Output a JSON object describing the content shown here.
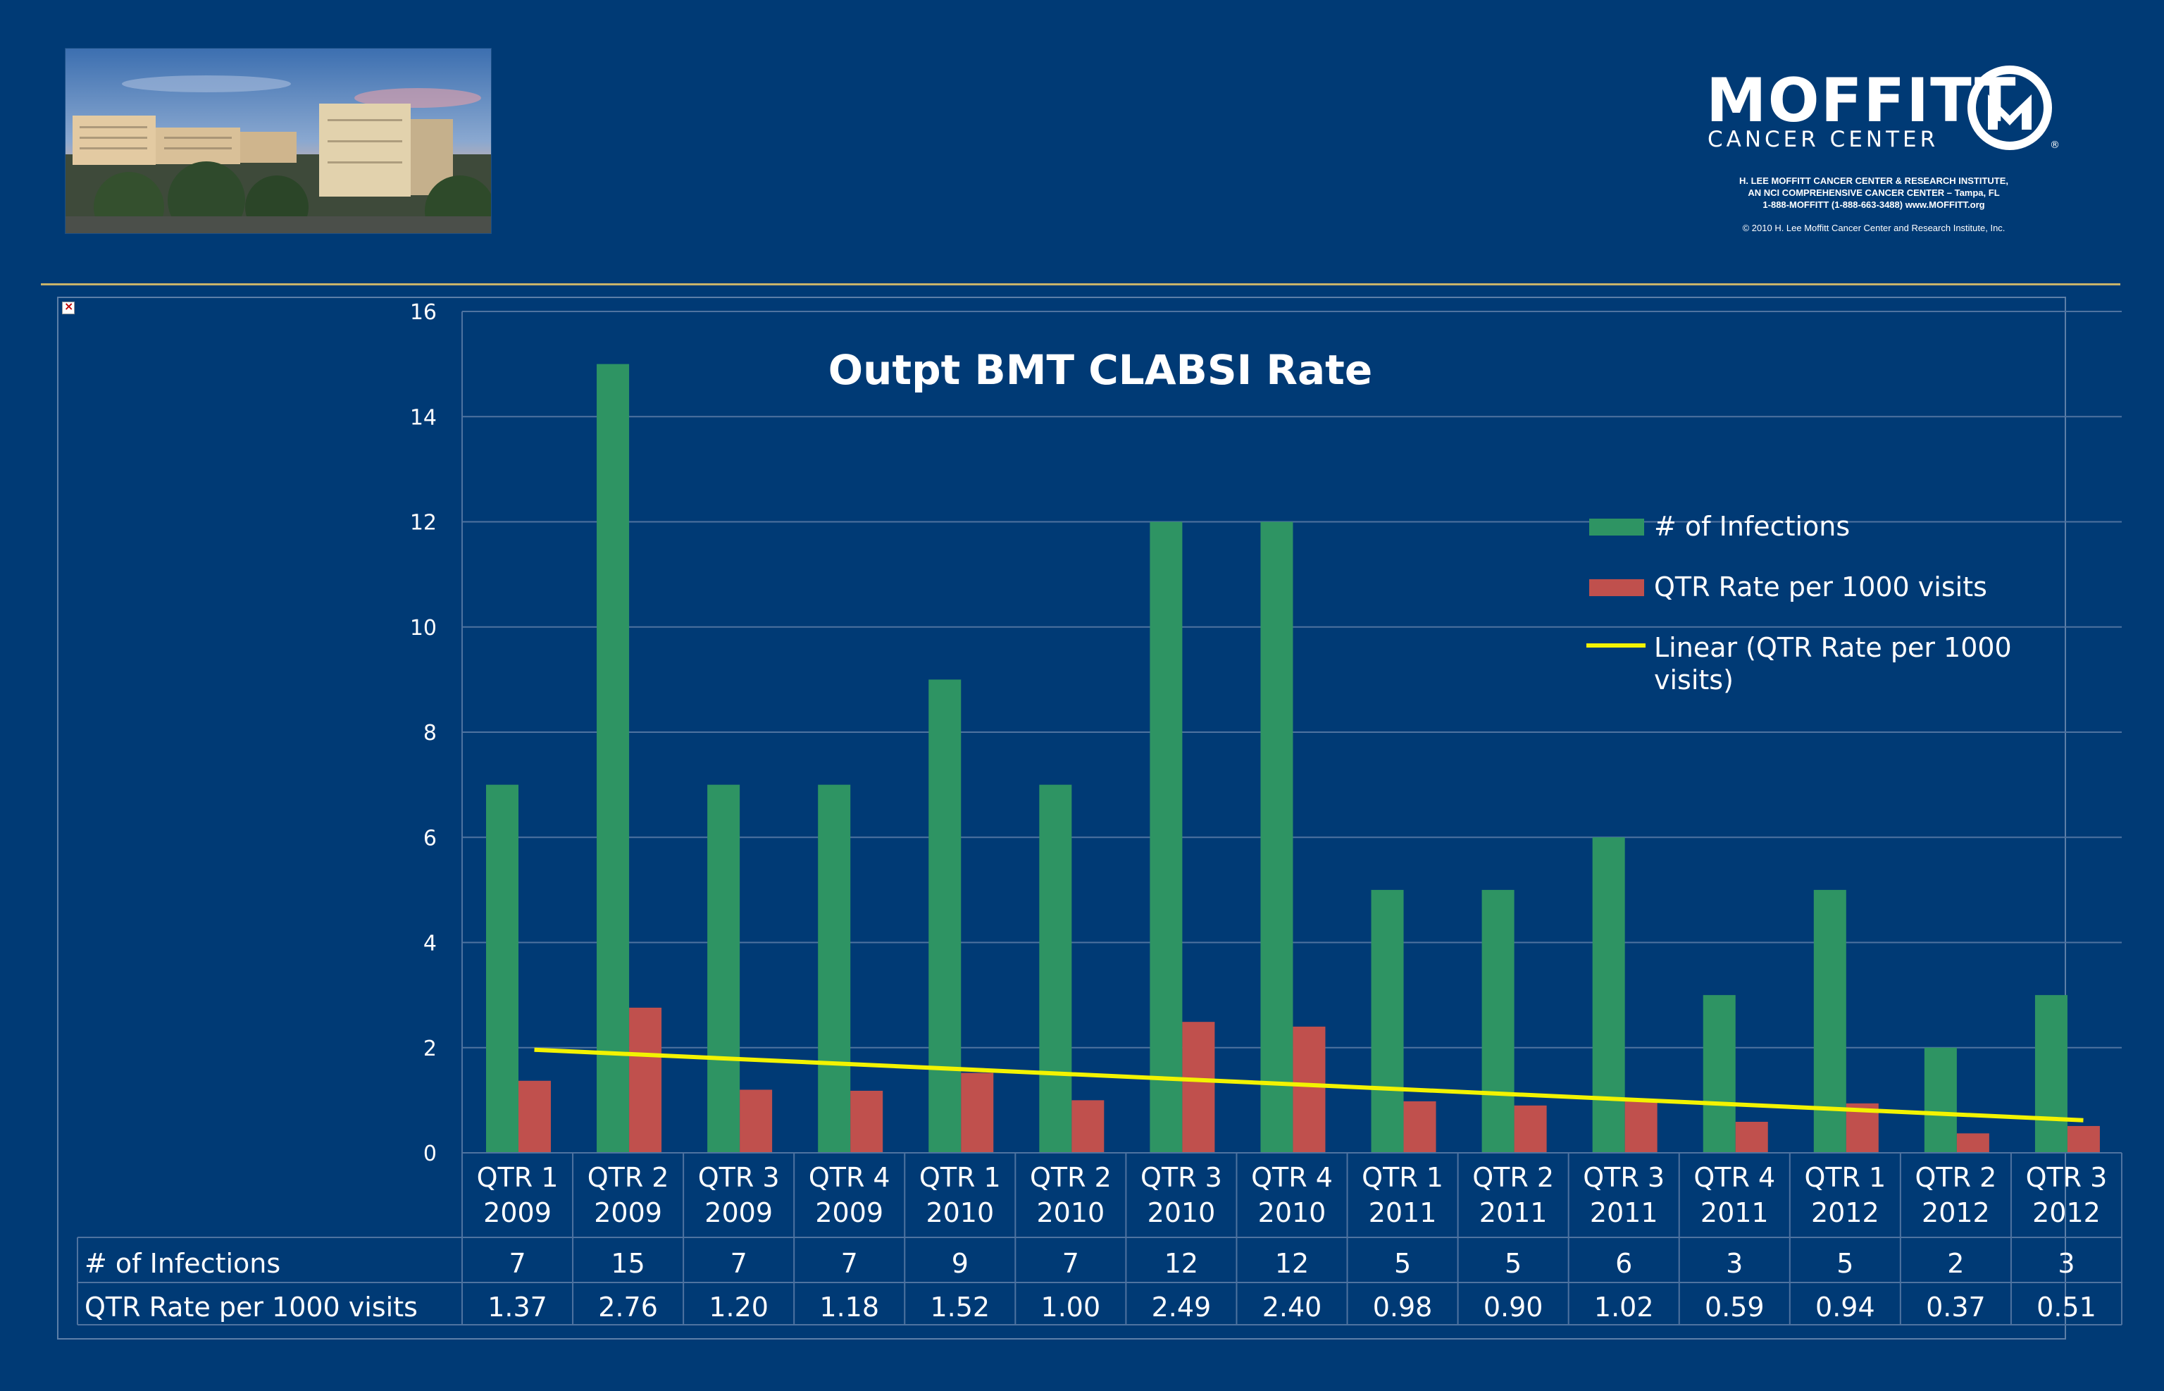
{
  "header": {
    "photo_alt": "Moffitt Cancer Center campus",
    "logo": {
      "wordmark": "MOFFITT",
      "subline": "CANCER CENTER",
      "registered": "®",
      "info_lines": [
        "H. LEE MOFFITT CANCER CENTER & RESEARCH INSTITUTE,",
        "AN NCI COMPREHENSIVE CANCER CENTER – Tampa, FL",
        "1-888-MOFFITT (1-888-663-3488)   www.MOFFITT.org"
      ],
      "copyright": "© 2010 H. Lee Moffitt Cancer Center and Research Institute, Inc."
    }
  },
  "colors": {
    "background": "#003a75",
    "infections": "#2e9463",
    "rate": "#c0504d",
    "trend": "#f3f300",
    "grid": "#4f73a0",
    "text": "#ffffff"
  },
  "chart_data": {
    "type": "bar",
    "title": "Outpt BMT CLABSI Rate",
    "ylim": [
      0,
      16
    ],
    "yticks": [
      0,
      2,
      4,
      6,
      8,
      10,
      12,
      14,
      16
    ],
    "categories": [
      [
        "QTR 1",
        "2009"
      ],
      [
        "QTR 2",
        "2009"
      ],
      [
        "QTR 3",
        "2009"
      ],
      [
        "QTR 4",
        "2009"
      ],
      [
        "QTR 1",
        "2010"
      ],
      [
        "QTR 2",
        "2010"
      ],
      [
        "QTR 3",
        "2010"
      ],
      [
        "QTR 4",
        "2010"
      ],
      [
        "QTR 1",
        "2011"
      ],
      [
        "QTR 2",
        "2011"
      ],
      [
        "QTR 3",
        "2011"
      ],
      [
        "QTR 4",
        "2011"
      ],
      [
        "QTR 1",
        "2012"
      ],
      [
        "QTR 2",
        "2012"
      ],
      [
        "QTR 3",
        "2012"
      ]
    ],
    "series": [
      {
        "name": "# of Infections",
        "values": [
          7,
          15,
          7,
          7,
          9,
          7,
          12,
          12,
          5,
          5,
          6,
          3,
          5,
          2,
          3
        ],
        "labels": [
          "7",
          "15",
          "7",
          "7",
          "9",
          "7",
          "12",
          "12",
          "5",
          "5",
          "6",
          "3",
          "5",
          "2",
          "3"
        ]
      },
      {
        "name": "QTR Rate per 1000 visits",
        "values": [
          1.37,
          2.76,
          1.2,
          1.18,
          1.52,
          1.0,
          2.49,
          2.4,
          0.98,
          0.9,
          1.02,
          0.59,
          0.94,
          0.37,
          0.51
        ],
        "labels": [
          "1.37",
          "2.76",
          "1.20",
          "1.18",
          "1.52",
          "1.00",
          "2.49",
          "2.40",
          "0.98",
          "0.90",
          "1.02",
          "0.59",
          "0.94",
          "0.37",
          "0.51"
        ]
      }
    ],
    "trendline": {
      "name": "Linear (QTR Rate per 1000 visits)",
      "name_lines": [
        "Linear (QTR Rate per 1000",
        "visits)"
      ],
      "start": 1.96,
      "end": 0.62
    },
    "legend_position": "right",
    "grid": true,
    "data_table": true
  }
}
